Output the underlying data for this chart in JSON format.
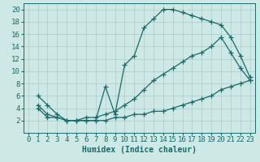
{
  "bg_color": "#cde8e5",
  "grid_color": "#aaccca",
  "line_color": "#1a6b6b",
  "xlabel": "Humidex (Indice chaleur)",
  "xlim": [
    -0.5,
    23.5
  ],
  "ylim": [
    0,
    21
  ],
  "xticks": [
    0,
    1,
    2,
    3,
    4,
    5,
    6,
    7,
    8,
    9,
    10,
    11,
    12,
    13,
    14,
    15,
    16,
    17,
    18,
    19,
    20,
    21,
    22,
    23
  ],
  "yticks": [
    2,
    4,
    6,
    8,
    10,
    12,
    14,
    16,
    18,
    20
  ],
  "curve_max": {
    "x": [
      1,
      2,
      3,
      4,
      5,
      6,
      7,
      8,
      9,
      10,
      11,
      12,
      13,
      14,
      15,
      16,
      17,
      18,
      19,
      20,
      21,
      22,
      23
    ],
    "y": [
      6.0,
      4.5,
      3.0,
      2.0,
      2.0,
      2.0,
      2.0,
      7.5,
      3.0,
      11.0,
      12.5,
      17.0,
      18.5,
      20.0,
      20.0,
      19.5,
      19.0,
      18.5,
      18.0,
      17.5,
      15.5,
      12.5,
      9.0
    ]
  },
  "curve_mid": {
    "x": [
      1,
      2,
      3,
      4,
      5,
      6,
      7,
      8,
      9,
      10,
      11,
      12,
      13,
      14,
      15,
      16,
      17,
      18,
      19,
      20,
      21,
      22,
      23
    ],
    "y": [
      4.5,
      3.0,
      2.5,
      2.0,
      2.0,
      2.5,
      2.5,
      3.0,
      3.5,
      4.5,
      5.5,
      7.0,
      8.5,
      9.5,
      10.5,
      11.5,
      12.5,
      13.0,
      14.0,
      15.5,
      13.0,
      10.5,
      8.5
    ]
  },
  "curve_min": {
    "x": [
      1,
      2,
      3,
      4,
      5,
      6,
      7,
      8,
      9,
      10,
      11,
      12,
      13,
      14,
      15,
      16,
      17,
      18,
      19,
      20,
      21,
      22,
      23
    ],
    "y": [
      4.0,
      2.5,
      2.5,
      2.0,
      2.0,
      2.0,
      2.0,
      2.0,
      2.5,
      2.5,
      3.0,
      3.0,
      3.5,
      3.5,
      4.0,
      4.5,
      5.0,
      5.5,
      6.0,
      7.0,
      7.5,
      8.0,
      8.5
    ]
  },
  "tick_fontsize": 6.5,
  "xlabel_fontsize": 7.0
}
